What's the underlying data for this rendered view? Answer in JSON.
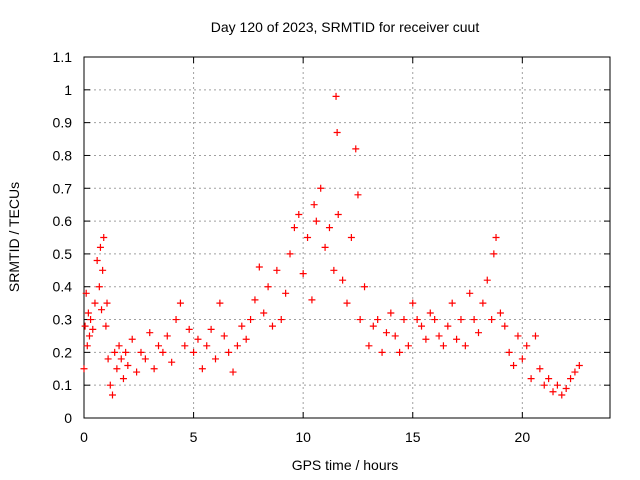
{
  "chart_data": {
    "type": "scatter",
    "title": "Day 120 of 2023, SRMTID for receiver cuut",
    "xlabel": "GPS time / hours",
    "ylabel": "SRMTID / TECUs",
    "xlim": [
      0,
      24
    ],
    "ylim": [
      0,
      1.1
    ],
    "xticks": [
      0,
      5,
      10,
      15,
      20
    ],
    "xtick_labels": [
      "0",
      "5",
      "10",
      "15",
      "20"
    ],
    "yticks": [
      0,
      0.1,
      0.2,
      0.3,
      0.4,
      0.5,
      0.6,
      0.7,
      0.8,
      0.9,
      1,
      1.1
    ],
    "ytick_labels": [
      "0",
      "0.1",
      "0.2",
      "0.3",
      "0.4",
      "0.5",
      "0.6",
      "0.7",
      "0.8",
      "0.9",
      "1",
      "1.1"
    ],
    "grid": true,
    "marker": "+",
    "marker_color": "#ff0000",
    "series": [
      {
        "name": "SRMTID",
        "x": [
          0.0,
          0.05,
          0.1,
          0.15,
          0.2,
          0.25,
          0.3,
          0.4,
          0.5,
          0.6,
          0.7,
          0.75,
          0.8,
          0.85,
          0.9,
          1.0,
          1.05,
          1.1,
          1.2,
          1.3,
          1.4,
          1.5,
          1.6,
          1.7,
          1.8,
          1.9,
          2.0,
          2.2,
          2.4,
          2.6,
          2.8,
          3.0,
          3.2,
          3.4,
          3.6,
          3.8,
          4.0,
          4.2,
          4.4,
          4.6,
          4.8,
          5.0,
          5.2,
          5.4,
          5.6,
          5.8,
          6.0,
          6.2,
          6.4,
          6.6,
          6.8,
          7.0,
          7.2,
          7.4,
          7.6,
          7.8,
          8.0,
          8.2,
          8.4,
          8.6,
          8.8,
          9.0,
          9.2,
          9.4,
          9.6,
          9.8,
          10.0,
          10.2,
          10.4,
          10.5,
          10.6,
          10.8,
          11.0,
          11.2,
          11.4,
          11.5,
          11.55,
          11.6,
          11.8,
          12.0,
          12.2,
          12.4,
          12.5,
          12.6,
          12.8,
          13.0,
          13.2,
          13.4,
          13.6,
          13.8,
          14.0,
          14.2,
          14.4,
          14.6,
          14.8,
          15.0,
          15.2,
          15.4,
          15.6,
          15.8,
          16.0,
          16.2,
          16.4,
          16.6,
          16.8,
          17.0,
          17.2,
          17.4,
          17.6,
          17.8,
          18.0,
          18.2,
          18.4,
          18.6,
          18.7,
          18.8,
          19.0,
          19.2,
          19.4,
          19.6,
          19.8,
          20.0,
          20.2,
          20.4,
          20.6,
          20.8,
          21.0,
          21.2,
          21.4,
          21.6,
          21.8,
          22.0,
          22.2,
          22.4,
          22.6
        ],
        "y": [
          0.15,
          0.28,
          0.38,
          0.22,
          0.32,
          0.25,
          0.3,
          0.27,
          0.35,
          0.48,
          0.4,
          0.52,
          0.33,
          0.45,
          0.55,
          0.28,
          0.35,
          0.18,
          0.1,
          0.07,
          0.2,
          0.15,
          0.22,
          0.18,
          0.12,
          0.2,
          0.16,
          0.24,
          0.14,
          0.2,
          0.18,
          0.26,
          0.15,
          0.22,
          0.2,
          0.25,
          0.17,
          0.3,
          0.35,
          0.22,
          0.27,
          0.2,
          0.24,
          0.15,
          0.22,
          0.27,
          0.18,
          0.35,
          0.25,
          0.2,
          0.14,
          0.22,
          0.28,
          0.24,
          0.3,
          0.36,
          0.46,
          0.32,
          0.4,
          0.28,
          0.45,
          0.3,
          0.38,
          0.5,
          0.58,
          0.62,
          0.44,
          0.55,
          0.36,
          0.65,
          0.6,
          0.7,
          0.52,
          0.58,
          0.45,
          0.98,
          0.87,
          0.62,
          0.42,
          0.35,
          0.55,
          0.82,
          0.68,
          0.3,
          0.4,
          0.22,
          0.28,
          0.3,
          0.2,
          0.26,
          0.32,
          0.25,
          0.2,
          0.3,
          0.22,
          0.35,
          0.3,
          0.28,
          0.24,
          0.32,
          0.3,
          0.25,
          0.22,
          0.28,
          0.35,
          0.24,
          0.3,
          0.22,
          0.38,
          0.3,
          0.26,
          0.35,
          0.42,
          0.3,
          0.5,
          0.55,
          0.32,
          0.28,
          0.2,
          0.16,
          0.25,
          0.18,
          0.22,
          0.12,
          0.25,
          0.15,
          0.1,
          0.12,
          0.08,
          0.1,
          0.07,
          0.09,
          0.12,
          0.14,
          0.16
        ]
      }
    ]
  }
}
